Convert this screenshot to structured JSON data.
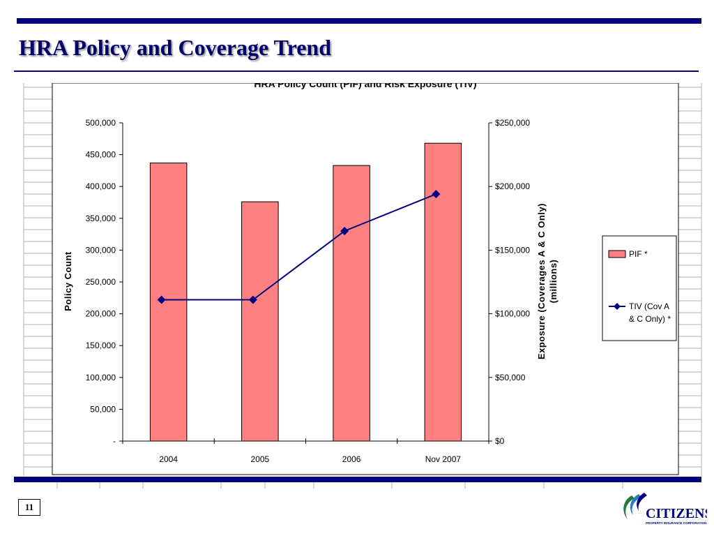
{
  "slide": {
    "title": "HRA Policy and Coverage Trend",
    "page_number": "11",
    "logo_text": "CITIZENS",
    "logo_subtext": "PROPERTY INSURANCE CORPORATION"
  },
  "colors": {
    "brand_navy": "#000080",
    "bar_fill": "#FF8080",
    "line": "#000080",
    "grid_line": "#b0b0b0"
  },
  "chart_data": {
    "type": "bar",
    "title": "HRA Policy Count (PIF) and Risk Exposure (TIV)",
    "categories": [
      "2004",
      "2005",
      "2006",
      "Nov 2007"
    ],
    "series": [
      {
        "name": "PIF *",
        "type": "bar",
        "axis": "left",
        "values": [
          437000,
          376000,
          433000,
          468000
        ]
      },
      {
        "name": "TIV (Cov A & C Only) *",
        "type": "line",
        "axis": "right",
        "values": [
          111000,
          111000,
          165000,
          194000
        ]
      }
    ],
    "y_left": {
      "label": "Policy Count",
      "min": 0,
      "max": 500000,
      "ticks": [
        "-",
        "50,000",
        "100,000",
        "150,000",
        "200,000",
        "250,000",
        "300,000",
        "350,000",
        "400,000",
        "450,000",
        "500,000"
      ]
    },
    "y_right": {
      "label_line1": "Exposure (Coverages A & C Only)",
      "label_line2": "(millions)",
      "min": 0,
      "max": 250000,
      "ticks": [
        "$0",
        "$50,000",
        "$100,000",
        "$150,000",
        "$200,000",
        "$250,000"
      ]
    },
    "legend": {
      "position": "right",
      "entries": [
        {
          "line1": "PIF *",
          "line2": ""
        },
        {
          "line1": "TIV (Cov A",
          "line2": "& C Only) *"
        }
      ]
    }
  }
}
